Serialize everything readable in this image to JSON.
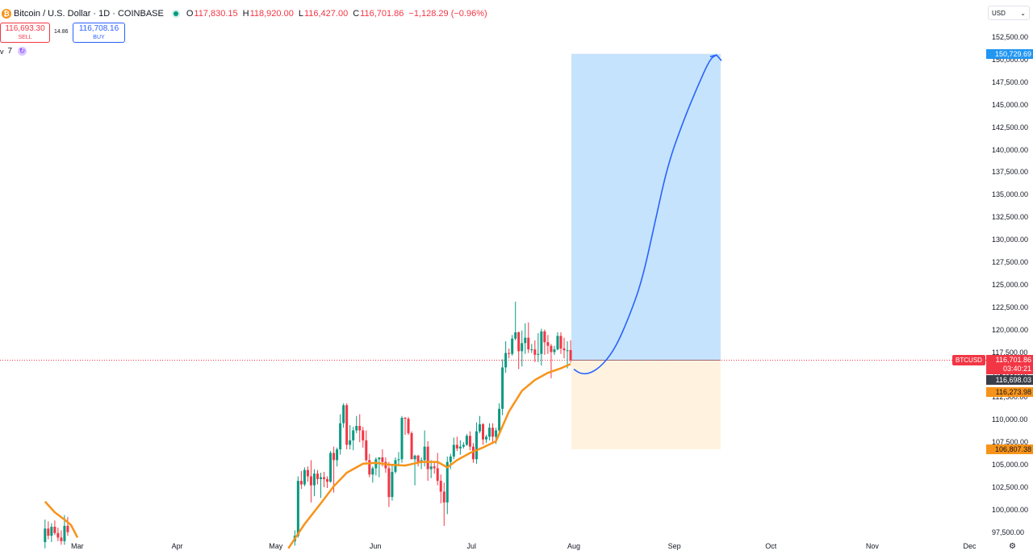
{
  "header": {
    "symbol_title": "Bitcoin / U.S. Dollar · 1D · COINBASE",
    "logo_glyph": "₿",
    "open_label": "O",
    "open_value": "117,830.15",
    "high_label": "H",
    "high_value": "118,920.00",
    "low_label": "L",
    "low_value": "116,427.00",
    "close_label": "C",
    "close_value": "116,701.86",
    "change": "−1,128.29 (−0.96%)"
  },
  "trade": {
    "sell_price": "116,693.30",
    "sell_label": "SELL",
    "spread": "14.86",
    "buy_price": "116,708.16",
    "buy_label": "BUY"
  },
  "indicator": {
    "chevron": "v",
    "length": "7",
    "cycle_icon": "cycle-icon"
  },
  "currency": {
    "value": "USD",
    "chevron": "⌄"
  },
  "settings_icon": "gear-icon",
  "colors": {
    "up": "#089981",
    "down": "#f23645",
    "ma": "#f7931a",
    "target_zone": "#bbdefb",
    "stop_zone": "#fff3e0",
    "projection": "#2962ff"
  },
  "price_labels": {
    "target": "150,729.69",
    "symbol_tag": "BTCUSD",
    "last_price": "116,701.86",
    "countdown": "03:40:21",
    "bid_price": "116,698.03",
    "ma_price": "116,273.98",
    "stop": "106,807.38"
  },
  "chart_data": {
    "type": "candlestick",
    "ylim": [
      96500,
      154000
    ],
    "y_ticks": [
      "152,500.00",
      "150,000.00",
      "147,500.00",
      "145,000.00",
      "142,500.00",
      "140,000.00",
      "137,500.00",
      "135,000.00",
      "132,500.00",
      "130,000.00",
      "127,500.00",
      "125,000.00",
      "122,500.00",
      "120,000.00",
      "117,500.00",
      "115,000.00",
      "112,500.00",
      "110,000.00",
      "107,500.00",
      "105,000.00",
      "102,500.00",
      "100,000.00",
      "97,500.00"
    ],
    "x_ticks": [
      "Mar",
      "Apr",
      "May",
      "Jun",
      "Jul",
      "Aug",
      "Sep",
      "Oct",
      "Nov",
      "Dec"
    ],
    "candles": [
      {
        "d": "2025-02-19",
        "o": 96500,
        "h": 99000,
        "l": 95800,
        "c": 98000
      },
      {
        "d": "2025-02-20",
        "o": 98000,
        "h": 98800,
        "l": 96800,
        "c": 97200
      },
      {
        "d": "2025-02-21",
        "o": 97200,
        "h": 98600,
        "l": 96500,
        "c": 98200
      },
      {
        "d": "2025-02-22",
        "o": 98200,
        "h": 98900,
        "l": 97300,
        "c": 97500
      },
      {
        "d": "2025-02-23",
        "o": 97500,
        "h": 98100,
        "l": 96600,
        "c": 97000
      },
      {
        "d": "2025-02-24",
        "o": 97000,
        "h": 97800,
        "l": 96200,
        "c": 96600
      },
      {
        "d": "2025-02-25",
        "o": 96600,
        "h": 99500,
        "l": 96200,
        "c": 98300
      },
      {
        "d": "2025-02-26",
        "o": 98300,
        "h": 99300,
        "l": 97200,
        "c": 97600
      },
      {
        "d": "2025-05-07",
        "o": 96600,
        "h": 97800,
        "l": 96100,
        "c": 97200
      },
      {
        "d": "2025-05-08",
        "o": 97200,
        "h": 103800,
        "l": 97000,
        "c": 103300
      },
      {
        "d": "2025-05-09",
        "o": 103300,
        "h": 104400,
        "l": 102400,
        "c": 102900
      },
      {
        "d": "2025-05-10",
        "o": 102900,
        "h": 104800,
        "l": 102700,
        "c": 104500
      },
      {
        "d": "2025-05-11",
        "o": 104500,
        "h": 104900,
        "l": 103200,
        "c": 103800
      },
      {
        "d": "2025-05-12",
        "o": 103800,
        "h": 105600,
        "l": 100900,
        "c": 102800
      },
      {
        "d": "2025-05-13",
        "o": 102800,
        "h": 104600,
        "l": 101600,
        "c": 104100
      },
      {
        "d": "2025-05-14",
        "o": 104100,
        "h": 104500,
        "l": 102900,
        "c": 103500
      },
      {
        "d": "2025-05-15",
        "o": 103500,
        "h": 104200,
        "l": 101400,
        "c": 103700
      },
      {
        "d": "2025-05-16",
        "o": 103700,
        "h": 104300,
        "l": 102600,
        "c": 103500
      },
      {
        "d": "2025-05-17",
        "o": 103500,
        "h": 103800,
        "l": 102500,
        "c": 103200
      },
      {
        "d": "2025-05-18",
        "o": 103200,
        "h": 106600,
        "l": 103100,
        "c": 106400
      },
      {
        "d": "2025-05-19",
        "o": 106400,
        "h": 107100,
        "l": 102000,
        "c": 105600
      },
      {
        "d": "2025-05-20",
        "o": 105600,
        "h": 107000,
        "l": 104900,
        "c": 106800
      },
      {
        "d": "2025-05-21",
        "o": 106800,
        "h": 110700,
        "l": 106200,
        "c": 109700
      },
      {
        "d": "2025-05-22",
        "o": 109700,
        "h": 111900,
        "l": 109200,
        "c": 111700
      },
      {
        "d": "2025-05-23",
        "o": 111700,
        "h": 111900,
        "l": 106800,
        "c": 107300
      },
      {
        "d": "2025-05-24",
        "o": 107300,
        "h": 109500,
        "l": 106800,
        "c": 107800
      },
      {
        "d": "2025-05-25",
        "o": 107800,
        "h": 109300,
        "l": 106700,
        "c": 108900
      },
      {
        "d": "2025-05-26",
        "o": 108900,
        "h": 110500,
        "l": 108600,
        "c": 109400
      },
      {
        "d": "2025-05-27",
        "o": 109400,
        "h": 110700,
        "l": 107600,
        "c": 108900
      },
      {
        "d": "2025-05-28",
        "o": 108900,
        "h": 109300,
        "l": 107000,
        "c": 107800
      },
      {
        "d": "2025-05-29",
        "o": 107800,
        "h": 108900,
        "l": 105400,
        "c": 105600
      },
      {
        "d": "2025-05-30",
        "o": 105600,
        "h": 106300,
        "l": 103700,
        "c": 104000
      },
      {
        "d": "2025-05-31",
        "o": 104000,
        "h": 104900,
        "l": 103100,
        "c": 104700
      },
      {
        "d": "2025-06-01",
        "o": 104700,
        "h": 105900,
        "l": 103900,
        "c": 105700
      },
      {
        "d": "2025-06-02",
        "o": 105700,
        "h": 105900,
        "l": 103700,
        "c": 105900
      },
      {
        "d": "2025-06-03",
        "o": 105900,
        "h": 106800,
        "l": 104900,
        "c": 105400
      },
      {
        "d": "2025-06-04",
        "o": 105400,
        "h": 105900,
        "l": 104200,
        "c": 104700
      },
      {
        "d": "2025-06-05",
        "o": 104700,
        "h": 105400,
        "l": 100400,
        "c": 101500
      },
      {
        "d": "2025-06-06",
        "o": 101500,
        "h": 105000,
        "l": 101100,
        "c": 104300
      },
      {
        "d": "2025-06-07",
        "o": 104300,
        "h": 105900,
        "l": 104100,
        "c": 105600
      },
      {
        "d": "2025-06-08",
        "o": 105600,
        "h": 106500,
        "l": 105100,
        "c": 105700
      },
      {
        "d": "2025-06-09",
        "o": 105700,
        "h": 110500,
        "l": 105300,
        "c": 110300
      },
      {
        "d": "2025-06-10",
        "o": 110300,
        "h": 110400,
        "l": 108400,
        "c": 110200
      },
      {
        "d": "2025-06-11",
        "o": 110200,
        "h": 110400,
        "l": 108400,
        "c": 108600
      },
      {
        "d": "2025-06-12",
        "o": 108600,
        "h": 108800,
        "l": 105800,
        "c": 105700
      },
      {
        "d": "2025-06-13",
        "o": 105700,
        "h": 106200,
        "l": 102800,
        "c": 106100
      },
      {
        "d": "2025-06-14",
        "o": 106100,
        "h": 106200,
        "l": 104900,
        "c": 105400
      },
      {
        "d": "2025-06-15",
        "o": 105400,
        "h": 105900,
        "l": 104600,
        "c": 105600
      },
      {
        "d": "2025-06-16",
        "o": 105600,
        "h": 108900,
        "l": 104900,
        "c": 107100
      },
      {
        "d": "2025-06-17",
        "o": 107100,
        "h": 107700,
        "l": 103300,
        "c": 104600
      },
      {
        "d": "2025-06-18",
        "o": 104600,
        "h": 105600,
        "l": 103600,
        "c": 104900
      },
      {
        "d": "2025-06-19",
        "o": 104900,
        "h": 105300,
        "l": 104100,
        "c": 104700
      },
      {
        "d": "2025-06-20",
        "o": 104700,
        "h": 106400,
        "l": 102800,
        "c": 103300
      },
      {
        "d": "2025-06-21",
        "o": 103300,
        "h": 104000,
        "l": 100800,
        "c": 102100
      },
      {
        "d": "2025-06-22",
        "o": 102100,
        "h": 103100,
        "l": 98300,
        "c": 100900
      },
      {
        "d": "2025-06-23",
        "o": 100900,
        "h": 106000,
        "l": 99600,
        "c": 105400
      },
      {
        "d": "2025-06-24",
        "o": 105400,
        "h": 106300,
        "l": 104600,
        "c": 106000
      },
      {
        "d": "2025-06-25",
        "o": 106000,
        "h": 108100,
        "l": 105700,
        "c": 107300
      },
      {
        "d": "2025-06-26",
        "o": 107300,
        "h": 108200,
        "l": 106600,
        "c": 106900
      },
      {
        "d": "2025-06-27",
        "o": 106900,
        "h": 107800,
        "l": 106200,
        "c": 107100
      },
      {
        "d": "2025-06-28",
        "o": 107100,
        "h": 107600,
        "l": 106900,
        "c": 107300
      },
      {
        "d": "2025-06-29",
        "o": 107300,
        "h": 108500,
        "l": 107200,
        "c": 108300
      },
      {
        "d": "2025-06-30",
        "o": 108300,
        "h": 108800,
        "l": 106700,
        "c": 107100
      },
      {
        "d": "2025-07-01",
        "o": 107100,
        "h": 107500,
        "l": 105300,
        "c": 105700
      },
      {
        "d": "2025-07-02",
        "o": 105700,
        "h": 109800,
        "l": 105200,
        "c": 108800
      },
      {
        "d": "2025-07-03",
        "o": 108800,
        "h": 110500,
        "l": 108600,
        "c": 109600
      },
      {
        "d": "2025-07-04",
        "o": 109600,
        "h": 109700,
        "l": 107300,
        "c": 107900
      },
      {
        "d": "2025-07-05",
        "o": 107900,
        "h": 108400,
        "l": 107500,
        "c": 108200
      },
      {
        "d": "2025-07-06",
        "o": 108200,
        "h": 109700,
        "l": 107800,
        "c": 109200
      },
      {
        "d": "2025-07-07",
        "o": 109200,
        "h": 109700,
        "l": 107500,
        "c": 108200
      },
      {
        "d": "2025-07-08",
        "o": 108200,
        "h": 109200,
        "l": 107400,
        "c": 108900
      },
      {
        "d": "2025-07-09",
        "o": 108900,
        "h": 111900,
        "l": 108400,
        "c": 111300
      },
      {
        "d": "2025-07-10",
        "o": 111300,
        "h": 116800,
        "l": 110600,
        "c": 115900
      },
      {
        "d": "2025-07-11",
        "o": 115900,
        "h": 118800,
        "l": 115300,
        "c": 117500
      },
      {
        "d": "2025-07-12",
        "o": 117500,
        "h": 118000,
        "l": 116900,
        "c": 117400
      },
      {
        "d": "2025-07-13",
        "o": 117400,
        "h": 119500,
        "l": 117200,
        "c": 119100
      },
      {
        "d": "2025-07-14",
        "o": 119100,
        "h": 123200,
        "l": 118900,
        "c": 119800
      },
      {
        "d": "2025-07-15",
        "o": 119800,
        "h": 119900,
        "l": 115700,
        "c": 117700
      },
      {
        "d": "2025-07-16",
        "o": 117700,
        "h": 120000,
        "l": 116000,
        "c": 118600
      },
      {
        "d": "2025-07-17",
        "o": 118600,
        "h": 120800,
        "l": 117400,
        "c": 119200
      },
      {
        "d": "2025-07-18",
        "o": 119200,
        "h": 120900,
        "l": 117500,
        "c": 117900
      },
      {
        "d": "2025-07-19",
        "o": 117900,
        "h": 118500,
        "l": 117500,
        "c": 117900
      },
      {
        "d": "2025-07-20",
        "o": 117900,
        "h": 118900,
        "l": 116500,
        "c": 117300
      },
      {
        "d": "2025-07-21",
        "o": 117300,
        "h": 119700,
        "l": 116500,
        "c": 117400
      },
      {
        "d": "2025-07-22",
        "o": 117400,
        "h": 120200,
        "l": 116100,
        "c": 119900
      },
      {
        "d": "2025-07-23",
        "o": 119900,
        "h": 120100,
        "l": 117300,
        "c": 118700
      },
      {
        "d": "2025-07-24",
        "o": 118700,
        "h": 119500,
        "l": 117400,
        "c": 118300
      },
      {
        "d": "2025-07-25",
        "o": 118300,
        "h": 118500,
        "l": 114700,
        "c": 117600
      },
      {
        "d": "2025-07-26",
        "o": 117600,
        "h": 118300,
        "l": 117300,
        "c": 117900
      },
      {
        "d": "2025-07-27",
        "o": 117900,
        "h": 119800,
        "l": 117800,
        "c": 119400
      },
      {
        "d": "2025-07-28",
        "o": 119400,
        "h": 119800,
        "l": 117400,
        "c": 118000
      },
      {
        "d": "2025-07-29",
        "o": 118000,
        "h": 119200,
        "l": 116900,
        "c": 117800
      },
      {
        "d": "2025-07-30",
        "o": 117800,
        "h": 118800,
        "l": 115800,
        "c": 117800
      },
      {
        "d": "2025-07-31",
        "o": 117830,
        "h": 118920,
        "l": 116427,
        "c": 116702
      }
    ],
    "moving_average": {
      "length": 7,
      "points": [
        [
          "2025-02-19",
          101000
        ],
        [
          "2025-02-22",
          99800
        ],
        [
          "2025-02-25",
          99000
        ],
        [
          "2025-02-27",
          98400
        ],
        [
          "2025-03-01",
          97000
        ],
        [
          "2025-05-05",
          95800
        ],
        [
          "2025-05-10",
          98500
        ],
        [
          "2025-05-15",
          100800
        ],
        [
          "2025-05-19",
          102700
        ],
        [
          "2025-05-23",
          104200
        ],
        [
          "2025-05-28",
          105200
        ],
        [
          "2025-06-01",
          105300
        ],
        [
          "2025-06-05",
          105100
        ],
        [
          "2025-06-10",
          105000
        ],
        [
          "2025-06-15",
          105400
        ],
        [
          "2025-06-20",
          105400
        ],
        [
          "2025-06-23",
          104800
        ],
        [
          "2025-06-26",
          105600
        ],
        [
          "2025-06-30",
          106400
        ],
        [
          "2025-07-04",
          107000
        ],
        [
          "2025-07-08",
          107700
        ],
        [
          "2025-07-12",
          111000
        ],
        [
          "2025-07-16",
          113300
        ],
        [
          "2025-07-20",
          114500
        ],
        [
          "2025-07-24",
          115300
        ],
        [
          "2025-07-28",
          115800
        ],
        [
          "2025-07-31",
          116274
        ]
      ]
    },
    "position": {
      "entry": 116701.86,
      "target": 150729.69,
      "stop": 106807.38,
      "start": "2025-07-31",
      "end": "2025-09-15"
    },
    "projection": [
      [
        "2025-08-01",
        115700
      ],
      [
        "2025-08-03",
        115200
      ],
      [
        "2025-08-06",
        115200
      ],
      [
        "2025-08-10",
        116200
      ],
      [
        "2025-08-14",
        118200
      ],
      [
        "2025-08-18",
        121500
      ],
      [
        "2025-08-22",
        125500
      ],
      [
        "2025-08-26",
        132000
      ],
      [
        "2025-08-30",
        138500
      ],
      [
        "2025-09-04",
        143500
      ],
      [
        "2025-09-08",
        147000
      ],
      [
        "2025-09-12",
        150200
      ],
      [
        "2025-09-14",
        150600
      ]
    ]
  }
}
